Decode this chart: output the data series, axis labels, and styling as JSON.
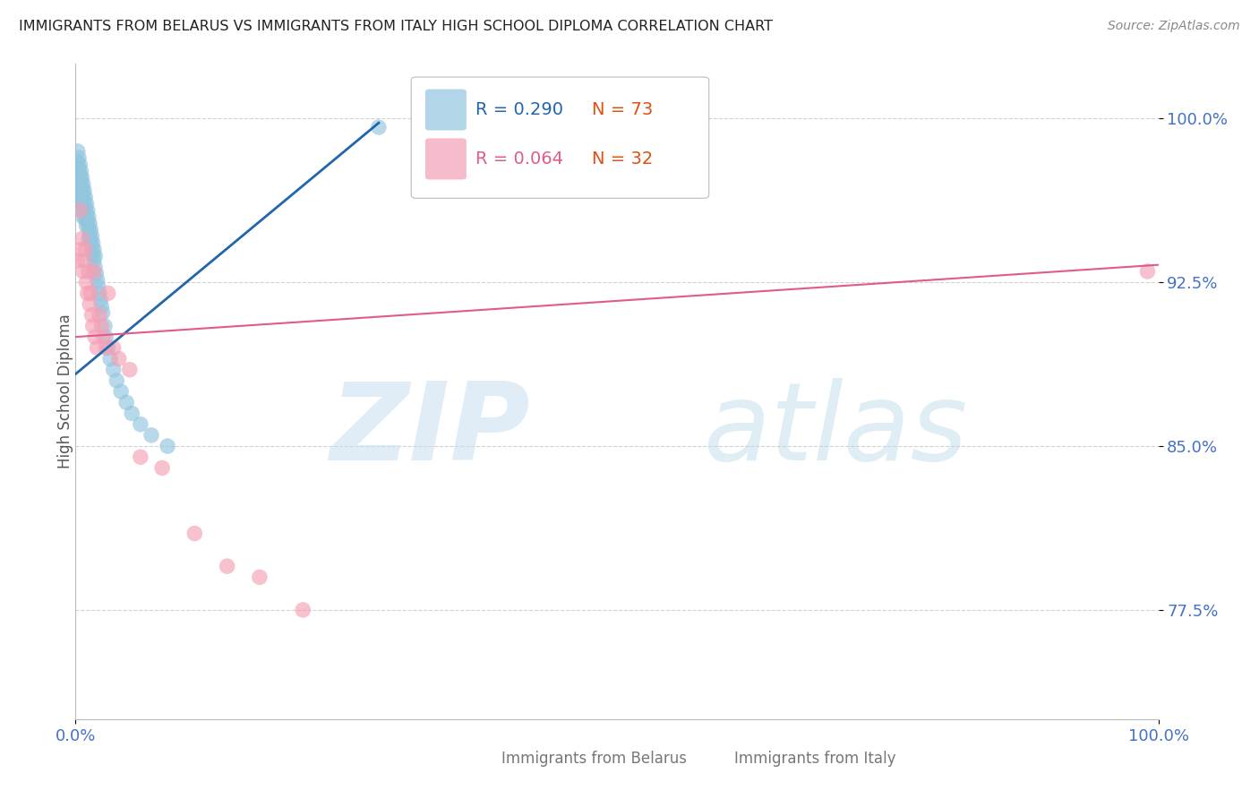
{
  "title": "IMMIGRANTS FROM BELARUS VS IMMIGRANTS FROM ITALY HIGH SCHOOL DIPLOMA CORRELATION CHART",
  "source": "Source: ZipAtlas.com",
  "ylabel": "High School Diploma",
  "yticks": [
    0.775,
    0.85,
    0.925,
    1.0
  ],
  "ytick_labels": [
    "77.5%",
    "85.0%",
    "92.5%",
    "100.0%"
  ],
  "xlim": [
    0.0,
    1.0
  ],
  "ylim": [
    0.725,
    1.025
  ],
  "belarus_color": "#92c5de",
  "italy_color": "#f4a0b5",
  "trend_blue": "#2166ac",
  "trend_pink": "#e05a8a",
  "legend_blue_r": "R = 0.290",
  "legend_blue_n": "N = 73",
  "legend_pink_r": "R = 0.064",
  "legend_pink_n": "N = 32",
  "belarus_x": [
    0.001,
    0.001,
    0.002,
    0.002,
    0.002,
    0.002,
    0.003,
    0.003,
    0.003,
    0.003,
    0.003,
    0.004,
    0.004,
    0.004,
    0.004,
    0.005,
    0.005,
    0.005,
    0.005,
    0.006,
    0.006,
    0.006,
    0.006,
    0.007,
    0.007,
    0.007,
    0.007,
    0.008,
    0.008,
    0.008,
    0.009,
    0.009,
    0.009,
    0.01,
    0.01,
    0.01,
    0.011,
    0.011,
    0.012,
    0.012,
    0.012,
    0.013,
    0.013,
    0.014,
    0.014,
    0.015,
    0.015,
    0.016,
    0.016,
    0.017,
    0.017,
    0.018,
    0.018,
    0.019,
    0.02,
    0.021,
    0.022,
    0.023,
    0.024,
    0.025,
    0.027,
    0.028,
    0.03,
    0.032,
    0.035,
    0.038,
    0.042,
    0.047,
    0.052,
    0.06,
    0.07,
    0.085,
    0.28
  ],
  "belarus_y": [
    0.978,
    0.972,
    0.985,
    0.98,
    0.975,
    0.968,
    0.982,
    0.977,
    0.973,
    0.968,
    0.963,
    0.979,
    0.974,
    0.969,
    0.963,
    0.976,
    0.971,
    0.966,
    0.961,
    0.973,
    0.968,
    0.963,
    0.958,
    0.97,
    0.965,
    0.96,
    0.955,
    0.967,
    0.962,
    0.957,
    0.964,
    0.959,
    0.954,
    0.961,
    0.956,
    0.951,
    0.958,
    0.953,
    0.955,
    0.95,
    0.945,
    0.952,
    0.947,
    0.949,
    0.944,
    0.946,
    0.941,
    0.943,
    0.938,
    0.94,
    0.935,
    0.937,
    0.932,
    0.929,
    0.926,
    0.923,
    0.92,
    0.917,
    0.914,
    0.911,
    0.905,
    0.9,
    0.895,
    0.89,
    0.885,
    0.88,
    0.875,
    0.87,
    0.865,
    0.86,
    0.855,
    0.85,
    0.996
  ],
  "italy_x": [
    0.002,
    0.004,
    0.005,
    0.006,
    0.007,
    0.008,
    0.009,
    0.01,
    0.011,
    0.012,
    0.013,
    0.014,
    0.015,
    0.016,
    0.017,
    0.018,
    0.02,
    0.022,
    0.024,
    0.026,
    0.028,
    0.03,
    0.035,
    0.04,
    0.05,
    0.06,
    0.08,
    0.11,
    0.14,
    0.17,
    0.21,
    0.99
  ],
  "italy_y": [
    0.935,
    0.958,
    0.94,
    0.945,
    0.93,
    0.935,
    0.94,
    0.925,
    0.92,
    0.93,
    0.915,
    0.92,
    0.91,
    0.905,
    0.93,
    0.9,
    0.895,
    0.91,
    0.905,
    0.9,
    0.895,
    0.92,
    0.895,
    0.89,
    0.885,
    0.845,
    0.84,
    0.81,
    0.795,
    0.79,
    0.775,
    0.93
  ],
  "watermark_zip": "ZIP",
  "watermark_atlas": "atlas",
  "background_color": "#ffffff",
  "grid_color": "#cccccc",
  "title_color": "#222222",
  "tick_color": "#4472c4"
}
